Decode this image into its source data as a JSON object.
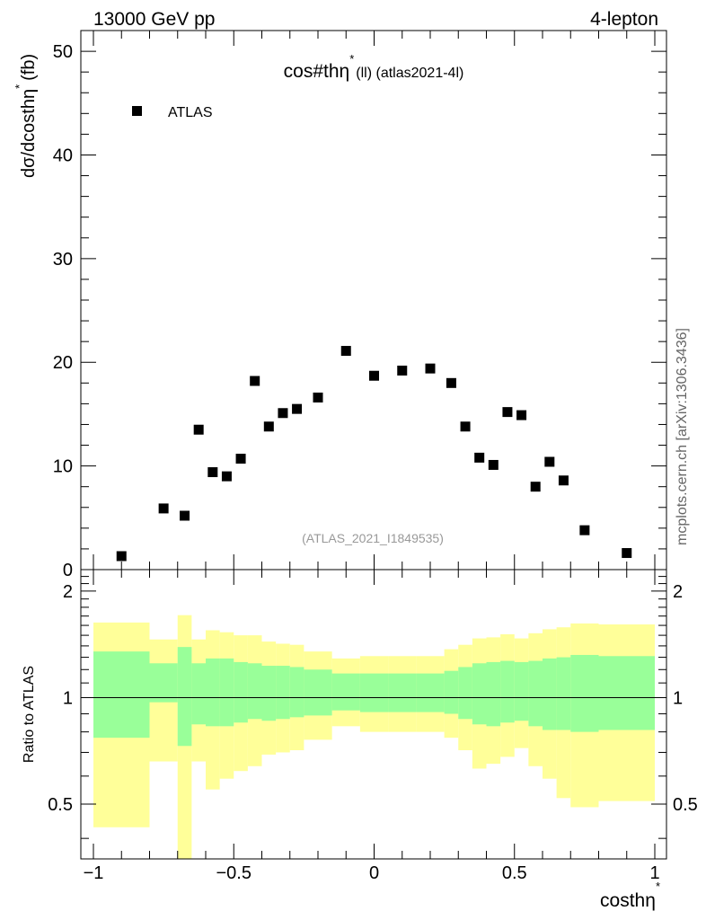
{
  "header": {
    "left": "13000 GeV pp",
    "right": "4-lepton"
  },
  "watermark": "mcplots.cern.ch [arXiv:1306.3436]",
  "chart_data": [
    {
      "type": "scatter",
      "title_main": "cos#th",
      "title_eta": "η",
      "title_star": "*",
      "title_rest": "(ll) (atlas2021-4l)",
      "ylabel_main": "dσ/dcosth",
      "ylabel_eta": "η",
      "ylabel_star": "*",
      "ylabel_unit": "(fb)",
      "annotation": "(ATLAS_2021_I1849535)",
      "xlim": [
        -1.0,
        1.0
      ],
      "ylim": [
        0,
        52
      ],
      "yticks": [
        0,
        10,
        20,
        30,
        40,
        50
      ],
      "legend": {
        "label": "ATLAS",
        "placement": "top-left",
        "marker": "square"
      },
      "series": [
        {
          "name": "ATLAS",
          "x": [
            -0.9,
            -0.75,
            -0.675,
            -0.625,
            -0.575,
            -0.525,
            -0.475,
            -0.425,
            -0.375,
            -0.325,
            -0.275,
            -0.2,
            -0.1,
            0.0,
            0.1,
            0.2,
            0.275,
            0.325,
            0.375,
            0.425,
            0.475,
            0.525,
            0.575,
            0.625,
            0.675,
            0.75,
            0.9
          ],
          "y": [
            1.3,
            5.9,
            5.2,
            13.5,
            9.4,
            9.0,
            10.7,
            18.2,
            13.8,
            15.1,
            15.5,
            16.6,
            21.1,
            18.7,
            19.2,
            19.4,
            18.0,
            13.8,
            10.8,
            10.1,
            15.2,
            14.9,
            8.0,
            10.4,
            8.6,
            3.8,
            1.6
          ]
        }
      ]
    },
    {
      "type": "area",
      "ylabel": "Ratio to ATLAS",
      "xlabel_main": "costh",
      "xlabel_eta": "η",
      "xlabel_star": "*",
      "xlim": [
        -1.0,
        1.0
      ],
      "ylim": [
        0.35,
        2.3
      ],
      "xticks": [
        -1,
        -0.5,
        0,
        0.5,
        1
      ],
      "xtick_labels": [
        "−1",
        "−0.5",
        "0",
        "0.5",
        "1"
      ],
      "yticks": [
        0.5,
        1,
        2
      ],
      "ytick_labels": [
        "0.5",
        "1",
        "2"
      ],
      "reference_line": 1,
      "colors": {
        "inner_band": "#99ff99",
        "outer_band": "#ffff99"
      },
      "bins": [
        {
          "lo": -1.0,
          "hi": -0.8,
          "g_lo": 0.77,
          "g_hi": 1.35,
          "y_lo": 0.43,
          "y_hi": 1.63
        },
        {
          "lo": -0.8,
          "hi": -0.7,
          "g_lo": 0.97,
          "g_hi": 1.25,
          "y_lo": 0.66,
          "y_hi": 1.46
        },
        {
          "lo": -0.7,
          "hi": -0.65,
          "g_lo": 0.73,
          "g_hi": 1.39,
          "y_lo": 0.3,
          "y_hi": 1.71
        },
        {
          "lo": -0.65,
          "hi": -0.6,
          "g_lo": 0.84,
          "g_hi": 1.25,
          "y_lo": 0.66,
          "y_hi": 1.46
        },
        {
          "lo": -0.6,
          "hi": -0.55,
          "g_lo": 0.83,
          "g_hi": 1.29,
          "y_lo": 0.55,
          "y_hi": 1.55
        },
        {
          "lo": -0.55,
          "hi": -0.5,
          "g_lo": 0.83,
          "g_hi": 1.29,
          "y_lo": 0.59,
          "y_hi": 1.53
        },
        {
          "lo": -0.5,
          "hi": -0.45,
          "g_lo": 0.85,
          "g_hi": 1.26,
          "y_lo": 0.62,
          "y_hi": 1.5
        },
        {
          "lo": -0.45,
          "hi": -0.4,
          "g_lo": 0.87,
          "g_hi": 1.25,
          "y_lo": 0.64,
          "y_hi": 1.5
        },
        {
          "lo": -0.4,
          "hi": -0.35,
          "g_lo": 0.86,
          "g_hi": 1.23,
          "y_lo": 0.69,
          "y_hi": 1.44
        },
        {
          "lo": -0.35,
          "hi": -0.3,
          "g_lo": 0.87,
          "g_hi": 1.23,
          "y_lo": 0.7,
          "y_hi": 1.42
        },
        {
          "lo": -0.3,
          "hi": -0.25,
          "g_lo": 0.88,
          "g_hi": 1.22,
          "y_lo": 0.71,
          "y_hi": 1.41
        },
        {
          "lo": -0.25,
          "hi": -0.15,
          "g_lo": 0.89,
          "g_hi": 1.2,
          "y_lo": 0.76,
          "y_hi": 1.35
        },
        {
          "lo": -0.15,
          "hi": -0.05,
          "g_lo": 0.92,
          "g_hi": 1.17,
          "y_lo": 0.83,
          "y_hi": 1.29
        },
        {
          "lo": -0.05,
          "hi": 0.05,
          "g_lo": 0.91,
          "g_hi": 1.17,
          "y_lo": 0.8,
          "y_hi": 1.31
        },
        {
          "lo": 0.05,
          "hi": 0.15,
          "g_lo": 0.91,
          "g_hi": 1.17,
          "y_lo": 0.8,
          "y_hi": 1.31
        },
        {
          "lo": 0.15,
          "hi": 0.25,
          "g_lo": 0.91,
          "g_hi": 1.17,
          "y_lo": 0.8,
          "y_hi": 1.31
        },
        {
          "lo": 0.25,
          "hi": 0.3,
          "g_lo": 0.9,
          "g_hi": 1.19,
          "y_lo": 0.77,
          "y_hi": 1.37
        },
        {
          "lo": 0.3,
          "hi": 0.35,
          "g_lo": 0.87,
          "g_hi": 1.22,
          "y_lo": 0.71,
          "y_hi": 1.41
        },
        {
          "lo": 0.35,
          "hi": 0.4,
          "g_lo": 0.84,
          "g_hi": 1.25,
          "y_lo": 0.63,
          "y_hi": 1.47
        },
        {
          "lo": 0.4,
          "hi": 0.45,
          "g_lo": 0.83,
          "g_hi": 1.26,
          "y_lo": 0.65,
          "y_hi": 1.48
        },
        {
          "lo": 0.45,
          "hi": 0.5,
          "g_lo": 0.85,
          "g_hi": 1.27,
          "y_lo": 0.68,
          "y_hi": 1.51
        },
        {
          "lo": 0.5,
          "hi": 0.55,
          "g_lo": 0.86,
          "g_hi": 1.26,
          "y_lo": 0.72,
          "y_hi": 1.47
        },
        {
          "lo": 0.55,
          "hi": 0.6,
          "g_lo": 0.83,
          "g_hi": 1.27,
          "y_lo": 0.64,
          "y_hi": 1.52
        },
        {
          "lo": 0.6,
          "hi": 0.65,
          "g_lo": 0.81,
          "g_hi": 1.29,
          "y_lo": 0.59,
          "y_hi": 1.56
        },
        {
          "lo": 0.65,
          "hi": 0.7,
          "g_lo": 0.81,
          "g_hi": 1.3,
          "y_lo": 0.52,
          "y_hi": 1.58
        },
        {
          "lo": 0.7,
          "hi": 0.8,
          "g_lo": 0.8,
          "g_hi": 1.32,
          "y_lo": 0.49,
          "y_hi": 1.62
        },
        {
          "lo": 0.8,
          "hi": 1.0,
          "g_lo": 0.81,
          "g_hi": 1.31,
          "y_lo": 0.51,
          "y_hi": 1.61
        }
      ]
    }
  ]
}
